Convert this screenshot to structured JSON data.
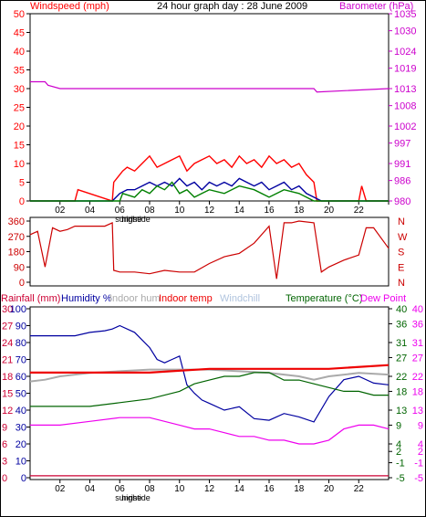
{
  "header": {
    "windspeed_label": "Windspeed (mph)",
    "title": "24 hour graph day : 28 June 2009",
    "barometer_label": "Barometer (hPa)"
  },
  "legend3": {
    "rainfall": "Rainfall (mm)",
    "humidity": "Humidity %",
    "indoor_hum": "Indoor hum",
    "indoor_temp": "Indoor temp",
    "windchill": "Windchill",
    "temperature": "Temperature (°C)",
    "dew_point": "Dew Point"
  },
  "colors": {
    "windspeed": "#ff0000",
    "windspeed_avg": "#0000a0",
    "windspeed_green": "#008000",
    "barometer": "#cc00cc",
    "direction": "#cc0000",
    "rainfall": "#cc0033",
    "humidity": "#0000a0",
    "indoor_hum": "#aaaaaa",
    "indoor_temp": "#ee0000",
    "windchill": "#b0c4de",
    "temperature": "#006400",
    "dew_point": "#ee00ee"
  },
  "chart_data": [
    {
      "id": "wind",
      "type": "line",
      "x_ticks": [
        "02",
        "04",
        "06",
        "08",
        "10",
        "12",
        "14",
        "16",
        "18",
        "20",
        "22"
      ],
      "x_tick_sub": [
        {
          "at": "06",
          "text": "sunrise"
        },
        {
          "at": "06",
          "text": "hightide"
        }
      ],
      "y_left_ticks": [
        0,
        5,
        10,
        15,
        20,
        25,
        30,
        35,
        40,
        45,
        50
      ],
      "y_left_range": [
        0,
        50
      ],
      "y_right_ticks": [
        980,
        986,
        991,
        997,
        1002,
        1008,
        1013,
        1019,
        1024,
        1030,
        1035
      ],
      "y_right_range": [
        980,
        1035
      ],
      "series": [
        {
          "key": "gust",
          "color_key": "windspeed",
          "x": [
            0,
            3,
            3.2,
            5.5,
            5.6,
            6.2,
            6.5,
            7,
            7.5,
            8,
            8.5,
            9,
            9.5,
            10,
            10.5,
            11,
            11.5,
            12,
            12.5,
            13,
            13.5,
            14,
            14.5,
            15,
            15.5,
            16,
            16.5,
            17,
            17.5,
            18,
            18.5,
            19,
            19.2,
            20,
            22,
            22.2,
            22.5,
            24
          ],
          "y": [
            0,
            0,
            3,
            0,
            5,
            8,
            9,
            8,
            10,
            12,
            9,
            10,
            11,
            12,
            8,
            10,
            11,
            12,
            10,
            11,
            9,
            12,
            10,
            11,
            9,
            12,
            10,
            11,
            9,
            10,
            7,
            5,
            0,
            0,
            0,
            4,
            0,
            0
          ]
        },
        {
          "key": "average",
          "color_key": "windspeed_avg",
          "x": [
            0,
            5.5,
            6,
            6.5,
            7,
            7.5,
            8,
            8.5,
            9,
            9.5,
            10,
            10.5,
            11,
            11.5,
            12,
            12.5,
            13,
            13.5,
            14,
            14.5,
            15,
            15.5,
            16,
            16.5,
            17,
            17.5,
            18,
            18.5,
            19,
            19.5,
            24
          ],
          "y": [
            0,
            0,
            2,
            3,
            3,
            4,
            5,
            4,
            5,
            4,
            6,
            4,
            5,
            3,
            5,
            4,
            5,
            4,
            6,
            5,
            4,
            5,
            3,
            4,
            5,
            3,
            4,
            2,
            1,
            0,
            0
          ]
        },
        {
          "key": "low",
          "color_key": "windspeed_green",
          "x": [
            0,
            6,
            6.2,
            7,
            7.5,
            8,
            8.5,
            9,
            9.5,
            10,
            10.5,
            11,
            11.5,
            12,
            13,
            14,
            15,
            16,
            17,
            18,
            19,
            24
          ],
          "y": [
            0,
            0,
            2,
            1,
            3,
            2,
            4,
            3,
            5,
            2,
            3,
            1,
            2,
            3,
            2,
            4,
            3,
            1,
            3,
            2,
            0,
            0
          ]
        },
        {
          "key": "barometer",
          "color_key": "barometer",
          "axis": "right",
          "x": [
            0,
            1,
            1.2,
            2,
            4,
            6,
            10,
            18,
            19,
            19.2,
            24
          ],
          "y": [
            1015,
            1015,
            1014,
            1013,
            1013,
            1013,
            1013,
            1013,
            1013,
            1012,
            1013
          ]
        }
      ]
    },
    {
      "id": "direction",
      "type": "line",
      "y_left_ticks": [
        0,
        90,
        180,
        270,
        360
      ],
      "y_left_range": [
        0,
        360
      ],
      "y_right_labels": [
        "N",
        "W",
        "S",
        "E",
        "N"
      ],
      "series": [
        {
          "key": "direction",
          "color_key": "direction",
          "x": [
            0,
            0.5,
            1,
            1.5,
            2,
            2.5,
            3,
            4,
            5,
            5.5,
            5.6,
            6,
            7,
            8,
            9,
            10,
            11,
            12,
            13,
            14,
            15,
            16,
            16.5,
            17,
            17.5,
            18,
            19,
            19.5,
            20,
            21,
            22,
            22.5,
            23,
            24
          ],
          "y": [
            280,
            300,
            90,
            320,
            300,
            310,
            330,
            330,
            330,
            350,
            70,
            60,
            60,
            50,
            70,
            60,
            60,
            110,
            150,
            170,
            230,
            330,
            20,
            350,
            350,
            360,
            350,
            60,
            90,
            130,
            160,
            320,
            320,
            200
          ]
        }
      ]
    },
    {
      "id": "temps",
      "type": "line",
      "y_axis_rainfall": [
        0,
        3,
        6,
        9,
        12,
        15,
        18,
        21,
        24,
        27,
        30
      ],
      "y_axis_humidity": [
        0,
        10,
        20,
        30,
        40,
        50,
        60,
        70,
        80,
        90,
        100
      ],
      "y_axis_temp_f": [
        -5,
        -1,
        2,
        4,
        9,
        13,
        18,
        22,
        27,
        31,
        36,
        40
      ],
      "y_axis_temp_c": [
        -5,
        -1,
        2,
        4,
        9,
        13,
        18,
        22,
        27,
        31,
        36,
        40
      ],
      "temp_range": [
        -5,
        40
      ],
      "humidity_range": [
        0,
        100
      ],
      "series": [
        {
          "key": "humidity",
          "color_key": "humidity",
          "axis": "humidity",
          "x": [
            0,
            3,
            4,
            5,
            5.5,
            6,
            7,
            8,
            8.5,
            9,
            9.5,
            10,
            10.5,
            11,
            11.5,
            12,
            13,
            14,
            15,
            16,
            17,
            18,
            19,
            20,
            21,
            22,
            23,
            24
          ],
          "y": [
            84,
            84,
            86,
            87,
            88,
            90,
            86,
            77,
            70,
            68,
            70,
            72,
            55,
            50,
            46,
            44,
            40,
            42,
            35,
            34,
            38,
            36,
            33,
            48,
            58,
            60,
            56,
            55
          ]
        },
        {
          "key": "indoor_hum",
          "color_key": "indoor_hum",
          "axis": "humidity",
          "x": [
            0,
            1,
            2,
            4,
            6,
            8,
            10,
            12,
            14,
            16,
            18,
            19,
            20,
            22,
            24
          ],
          "y": [
            57,
            58,
            60,
            62,
            63,
            64,
            64,
            64,
            63,
            62,
            60,
            58,
            60,
            62,
            61
          ]
        },
        {
          "key": "indoor_temp",
          "color_key": "indoor_temp",
          "axis": "temp",
          "x": [
            0,
            4,
            8,
            12,
            16,
            20,
            24
          ],
          "y": [
            23,
            23,
            23,
            24,
            24,
            24,
            25
          ]
        },
        {
          "key": "temperature",
          "color_key": "temperature",
          "axis": "temp",
          "x": [
            0,
            2,
            4,
            6,
            8,
            9,
            10,
            11,
            12,
            13,
            14,
            15,
            16,
            17,
            18,
            19,
            20,
            21,
            22,
            23,
            24
          ],
          "y": [
            14,
            14,
            14,
            15,
            16,
            17,
            18,
            20,
            21,
            22,
            22,
            23,
            23,
            21,
            21,
            20,
            19,
            18,
            18,
            17,
            17
          ]
        },
        {
          "key": "dew_point",
          "color_key": "dew_point",
          "axis": "temp",
          "x": [
            0,
            2,
            4,
            6,
            8,
            9,
            10,
            11,
            12,
            13,
            14,
            15,
            16,
            17,
            18,
            19,
            20,
            21,
            22,
            23,
            24
          ],
          "y": [
            9,
            9,
            10,
            11,
            11,
            10,
            9,
            8,
            8,
            7,
            6,
            6,
            5,
            5,
            4,
            4,
            5,
            8,
            9,
            9,
            8
          ]
        },
        {
          "key": "rainfall",
          "color_key": "rainfall",
          "axis": "temp",
          "x": [
            0,
            24
          ],
          "y": [
            -4.5,
            -4.5
          ]
        }
      ]
    }
  ]
}
